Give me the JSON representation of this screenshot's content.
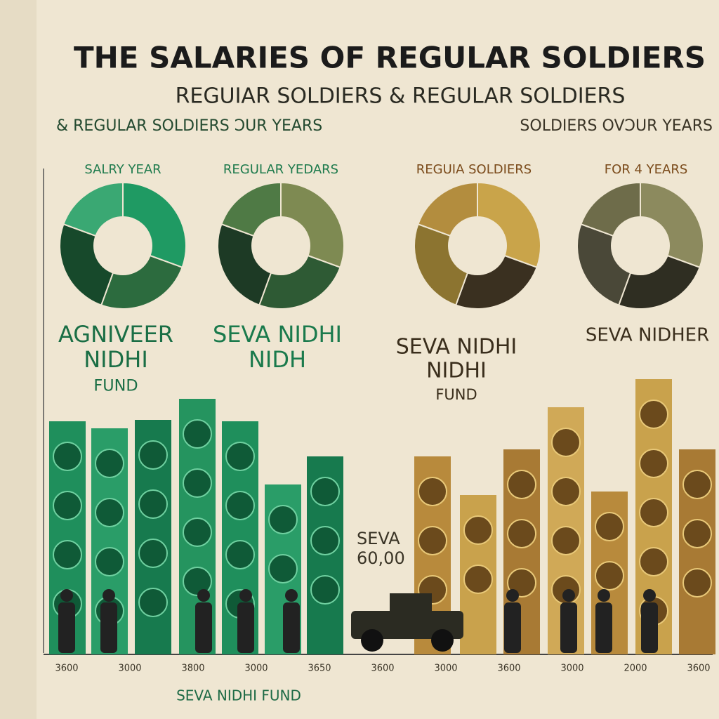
{
  "header": {
    "title": "THE SALARIES OF REGULAR SOLDIERS",
    "subtitle": "REGUIAR SOLDIERS  &  REGULAR SOLDIERS",
    "tagline_left": "& REGULAR SOLDIERS ƆUR YEARS",
    "tagline_right": "SOLDIERS OVƆUR YEARS"
  },
  "donuts": [
    {
      "label": "SALRY YEAR"
    },
    {
      "label": "REGULAR YEDARS"
    },
    {
      "label": "REGUIA SOLDIERS"
    },
    {
      "label": "FOR 4 YEARS"
    }
  ],
  "sections": [
    {
      "lines": [
        "AGNIVEER",
        "NIDHI",
        "FUND"
      ]
    },
    {
      "lines": [
        "SEVA NIDHI",
        "NIDH"
      ]
    },
    {
      "lines": [
        "SEVA NIDHI",
        "NIDHI",
        "FUND"
      ]
    },
    {
      "lines": [
        "SEVA NIDHER"
      ]
    }
  ],
  "callout": {
    "lines": [
      "SEVA",
      "60,00"
    ]
  },
  "x_labels": [
    "3600",
    "3000",
    "3800",
    "3000",
    "3650",
    "3600",
    "3000",
    "3600",
    "3000",
    "2000",
    "3600"
  ],
  "footer": "SEVA NIDHI FUND"
}
